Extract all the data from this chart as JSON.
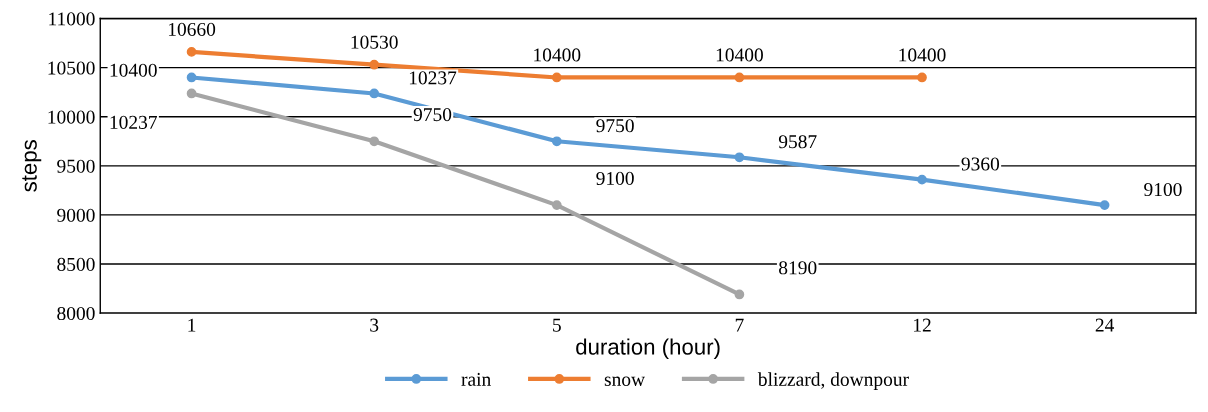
{
  "chart_data": {
    "type": "line",
    "xlabel": "duration (hour)",
    "ylabel": "steps",
    "categories": [
      "1",
      "3",
      "5",
      "7",
      "12",
      "24"
    ],
    "series": [
      {
        "name": "rain",
        "color": "#5b9bd5",
        "values": [
          10400,
          10237,
          9750,
          9587,
          9360,
          9100
        ]
      },
      {
        "name": "snow",
        "color": "#ed7d31",
        "values": [
          10660,
          10530,
          10400,
          10400,
          10400,
          null
        ]
      },
      {
        "name": "blizzard, downpour",
        "color": "#a5a5a5",
        "values": [
          10237,
          9750,
          9100,
          8190,
          null,
          null
        ]
      }
    ],
    "ylim": [
      8000,
      11000
    ],
    "yticks": [
      8000,
      8500,
      9000,
      9500,
      10000,
      10500,
      11000
    ],
    "grid": "y",
    "legend": "bottom",
    "marker": "circle",
    "line_style": "solid",
    "data_labels": true
  }
}
